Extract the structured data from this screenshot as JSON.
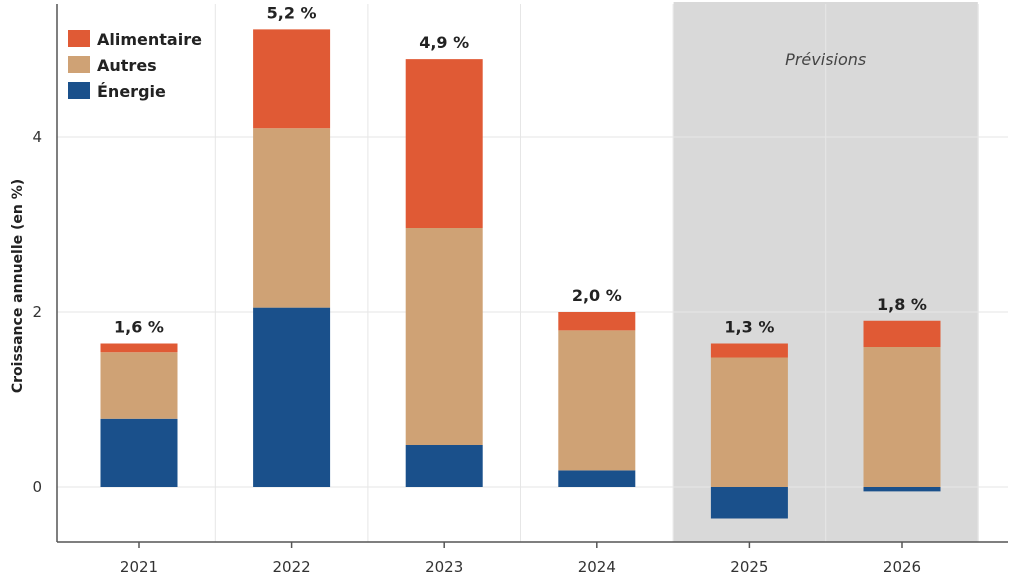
{
  "chart_data": {
    "type": "bar",
    "stacked": true,
    "categories": [
      "2021",
      "2022",
      "2023",
      "2024",
      "2025",
      "2026"
    ],
    "series": [
      {
        "name": "Énergie",
        "color": "#1a508b",
        "values": [
          0.78,
          2.05,
          0.48,
          0.19,
          -0.36,
          -0.05
        ]
      },
      {
        "name": "Autres",
        "color": "#cfa275",
        "values": [
          0.76,
          2.05,
          2.48,
          1.6,
          1.48,
          1.6
        ]
      },
      {
        "name": "Alimentaire",
        "color": "#e05a35",
        "values": [
          0.1,
          1.13,
          1.93,
          0.21,
          0.16,
          0.3
        ]
      }
    ],
    "legend_order": [
      "Alimentaire",
      "Autres",
      "Énergie"
    ],
    "totals_labels": [
      "1,6 %",
      "5,2 %",
      "4,9 %",
      "2,0 %",
      "1,3 %",
      "1,8 %"
    ],
    "ylabel": "Croissance annuelle (en %)",
    "xlabel": "",
    "ylim": [
      -0.6,
      5.6
    ],
    "yticks": [
      0,
      2,
      4
    ],
    "ytick_labels": [
      "0",
      "2",
      "4"
    ],
    "grid": true,
    "legend_position": "top-left",
    "forecast": {
      "label": "Prévisions",
      "categories": [
        "2025",
        "2026"
      ],
      "color": "#d9d9d9"
    }
  }
}
